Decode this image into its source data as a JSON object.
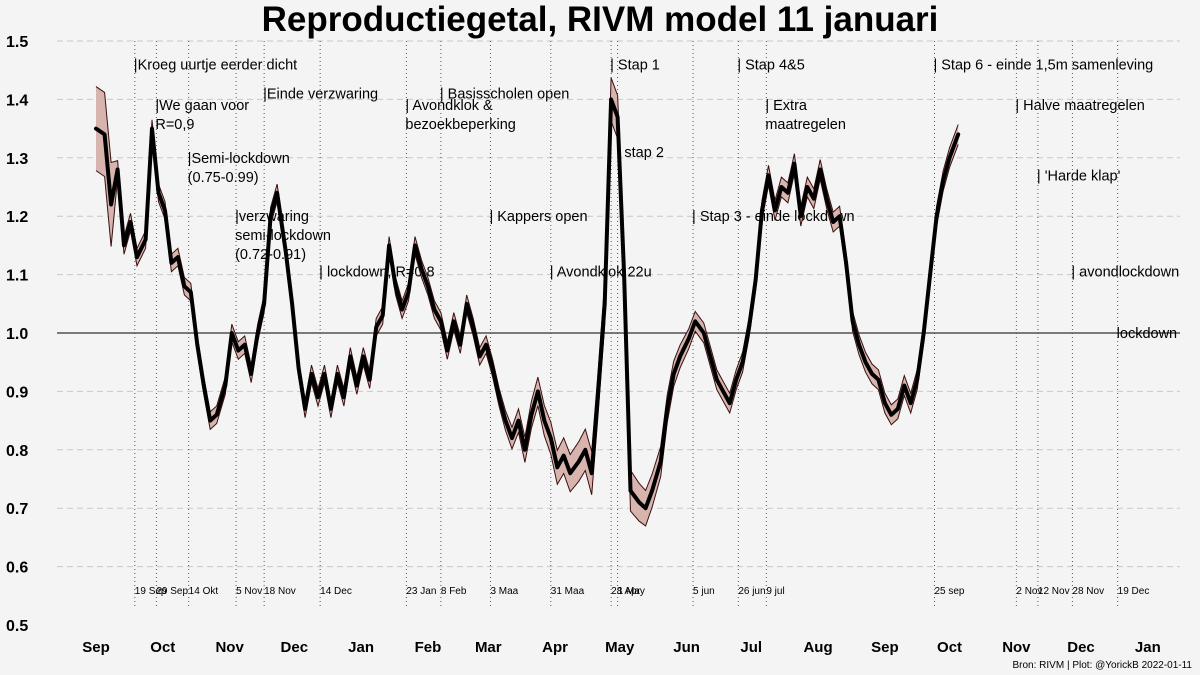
{
  "chart_data": {
    "type": "line",
    "title": "Reproductiegetal, RIVM model 11 januari",
    "source": "Bron: RIVM | Plot: @YorickB  2022-01-11",
    "ylim": [
      0.5,
      1.5
    ],
    "yticks": [
      "0.5",
      "0.6",
      "0.7",
      "0.8",
      "0.9",
      "1.0",
      "1.1",
      "1.2",
      "1.3",
      "1.4",
      "1.5"
    ],
    "reference_line": 1.0,
    "x_range_days": [
      0,
      489
    ],
    "month_labels": [
      {
        "label": "Sep",
        "day": 0
      },
      {
        "label": "Oct",
        "day": 31
      },
      {
        "label": "Nov",
        "day": 62
      },
      {
        "label": "Dec",
        "day": 92
      },
      {
        "label": "Jan",
        "day": 123
      },
      {
        "label": "Feb",
        "day": 154
      },
      {
        "label": "Mar",
        "day": 182
      },
      {
        "label": "Apr",
        "day": 213
      },
      {
        "label": "May",
        "day": 243
      },
      {
        "label": "Jun",
        "day": 274
      },
      {
        "label": "Jul",
        "day": 304
      },
      {
        "label": "Aug",
        "day": 335
      },
      {
        "label": "Sep",
        "day": 366
      },
      {
        "label": "Oct",
        "day": 396
      },
      {
        "label": "Nov",
        "day": 427
      },
      {
        "label": "Dec",
        "day": 457
      },
      {
        "label": "Jan",
        "day": 488
      }
    ],
    "events": [
      {
        "date": "19 Sep",
        "day": 18,
        "lines": [
          "|Kroeg uurtje eerder dicht"
        ],
        "y": 1.46
      },
      {
        "date": "29 Sep",
        "day": 28,
        "lines": [
          "|We gaan voor",
          "R=0,9"
        ],
        "y": 1.39
      },
      {
        "date": "14 Okt",
        "day": 43,
        "lines": [
          "|Semi-lockdown",
          "(0.75-0.99)"
        ],
        "y": 1.3
      },
      {
        "date": "5 Nov",
        "day": 65,
        "lines": [
          "|verzwaring",
          "semi-lockdown",
          "(0.72-0.91)"
        ],
        "y": 1.2
      },
      {
        "date": "18 Nov",
        "day": 78,
        "lines": [
          "|Einde verzwaring"
        ],
        "y": 1.41
      },
      {
        "date": "14 Dec",
        "day": 104,
        "lines": [
          "| lockdown, R=0.8"
        ],
        "y": 1.105
      },
      {
        "date": "23 Jan",
        "day": 144,
        "lines": [
          "| Avondklok &",
          "bezoekbeperking"
        ],
        "y": 1.39
      },
      {
        "date": "8 Feb",
        "day": 160,
        "lines": [
          "| Basisscholen open"
        ],
        "y": 1.41
      },
      {
        "date": "3 Maa",
        "day": 183,
        "lines": [
          "| Kappers open"
        ],
        "y": 1.2
      },
      {
        "date": "31 Maa",
        "day": 211,
        "lines": [
          "| Avondklok 22u"
        ],
        "y": 1.105
      },
      {
        "date": "28 Apr",
        "day": 239,
        "lines": [
          "| Stap 1"
        ],
        "y": 1.46
      },
      {
        "date": "1 May",
        "day": 242,
        "lines": [
          "| stap 2"
        ],
        "y": 1.31
      },
      {
        "date": "5 jun",
        "day": 277,
        "lines": [
          "| Stap 3 - einde lockdown"
        ],
        "y": 1.2
      },
      {
        "date": "26 jun",
        "day": 298,
        "lines": [
          "| Stap 4&5"
        ],
        "y": 1.46
      },
      {
        "date": "9 jul",
        "day": 311,
        "lines": [
          "| Extra",
          "maatregelen"
        ],
        "y": 1.39
      },
      {
        "date": "25 sep",
        "day": 389,
        "lines": [
          "| Stap 6 - einde 1,5m samenleving"
        ],
        "y": 1.46
      },
      {
        "date": "2 Nov",
        "day": 427,
        "lines": [
          "| Halve maatregelen"
        ],
        "y": 1.39
      },
      {
        "date": "12 Nov",
        "day": 437,
        "lines": [
          "| 'Harde klap'"
        ],
        "y": 1.27
      },
      {
        "date": "28 Nov",
        "day": 453,
        "lines": [
          "| avondlockdown"
        ],
        "y": 1.105
      },
      {
        "date": "19 Dec",
        "day": 474,
        "lines": [
          "lockdown"
        ],
        "y": 1.0
      }
    ],
    "series": [
      {
        "name": "R",
        "points": [
          [
            0,
            1.35
          ],
          [
            4,
            1.34
          ],
          [
            7,
            1.22
          ],
          [
            10,
            1.28
          ],
          [
            13,
            1.15
          ],
          [
            16,
            1.19
          ],
          [
            19,
            1.13
          ],
          [
            23,
            1.16
          ],
          [
            26,
            1.35
          ],
          [
            29,
            1.24
          ],
          [
            32,
            1.21
          ],
          [
            35,
            1.12
          ],
          [
            38,
            1.13
          ],
          [
            41,
            1.08
          ],
          [
            44,
            1.07
          ],
          [
            47,
            0.98
          ],
          [
            50,
            0.91
          ],
          [
            53,
            0.85
          ],
          [
            56,
            0.86
          ],
          [
            60,
            0.91
          ],
          [
            63,
            1.0
          ],
          [
            66,
            0.97
          ],
          [
            69,
            0.98
          ],
          [
            72,
            0.93
          ],
          [
            75,
            1.0
          ],
          [
            78,
            1.05
          ],
          [
            81,
            1.2
          ],
          [
            84,
            1.24
          ],
          [
            88,
            1.14
          ],
          [
            91,
            1.05
          ],
          [
            94,
            0.94
          ],
          [
            97,
            0.87
          ],
          [
            100,
            0.93
          ],
          [
            103,
            0.89
          ],
          [
            106,
            0.93
          ],
          [
            109,
            0.87
          ],
          [
            112,
            0.93
          ],
          [
            115,
            0.89
          ],
          [
            118,
            0.96
          ],
          [
            121,
            0.91
          ],
          [
            124,
            0.96
          ],
          [
            127,
            0.92
          ],
          [
            130,
            1.01
          ],
          [
            133,
            1.03
          ],
          [
            136,
            1.15
          ],
          [
            139,
            1.08
          ],
          [
            142,
            1.04
          ],
          [
            145,
            1.07
          ],
          [
            148,
            1.15
          ],
          [
            151,
            1.11
          ],
          [
            154,
            1.08
          ],
          [
            157,
            1.04
          ],
          [
            160,
            1.02
          ],
          [
            163,
            0.97
          ],
          [
            166,
            1.02
          ],
          [
            169,
            0.98
          ],
          [
            172,
            1.05
          ],
          [
            175,
            1.01
          ],
          [
            178,
            0.96
          ],
          [
            181,
            0.98
          ],
          [
            184,
            0.94
          ],
          [
            187,
            0.89
          ],
          [
            190,
            0.85
          ],
          [
            193,
            0.82
          ],
          [
            196,
            0.85
          ],
          [
            199,
            0.8
          ],
          [
            202,
            0.86
          ],
          [
            205,
            0.9
          ],
          [
            208,
            0.85
          ],
          [
            211,
            0.82
          ],
          [
            214,
            0.77
          ],
          [
            217,
            0.79
          ],
          [
            220,
            0.76
          ],
          [
            224,
            0.78
          ],
          [
            227,
            0.8
          ],
          [
            230,
            0.76
          ],
          [
            233,
            0.9
          ],
          [
            236,
            1.05
          ],
          [
            239,
            1.4
          ],
          [
            242,
            1.37
          ],
          [
            245,
            1.1
          ],
          [
            248,
            0.73
          ],
          [
            252,
            0.71
          ],
          [
            255,
            0.7
          ],
          [
            258,
            0.73
          ],
          [
            262,
            0.78
          ],
          [
            265,
            0.87
          ],
          [
            268,
            0.93
          ],
          [
            271,
            0.96
          ],
          [
            275,
            0.99
          ],
          [
            278,
            1.02
          ],
          [
            282,
            1.0
          ],
          [
            285,
            0.96
          ],
          [
            288,
            0.92
          ],
          [
            291,
            0.9
          ],
          [
            294,
            0.88
          ],
          [
            297,
            0.92
          ],
          [
            300,
            0.95
          ],
          [
            303,
            1.01
          ],
          [
            306,
            1.09
          ],
          [
            309,
            1.21
          ],
          [
            312,
            1.27
          ],
          [
            315,
            1.21
          ],
          [
            318,
            1.25
          ],
          [
            321,
            1.24
          ],
          [
            324,
            1.29
          ],
          [
            327,
            1.2
          ],
          [
            330,
            1.25
          ],
          [
            333,
            1.23
          ],
          [
            336,
            1.28
          ],
          [
            339,
            1.23
          ],
          [
            342,
            1.19
          ],
          [
            345,
            1.2
          ],
          [
            348,
            1.12
          ],
          [
            351,
            1.02
          ],
          [
            354,
            0.98
          ],
          [
            357,
            0.95
          ],
          [
            360,
            0.93
          ],
          [
            363,
            0.92
          ],
          [
            366,
            0.88
          ],
          [
            369,
            0.86
          ],
          [
            372,
            0.87
          ],
          [
            375,
            0.91
          ],
          [
            378,
            0.88
          ],
          [
            381,
            0.92
          ],
          [
            384,
            1.0
          ],
          [
            387,
            1.1
          ],
          [
            390,
            1.2
          ],
          [
            393,
            1.26
          ],
          [
            396,
            1.3
          ],
          [
            400,
            1.34
          ]
        ]
      }
    ]
  }
}
